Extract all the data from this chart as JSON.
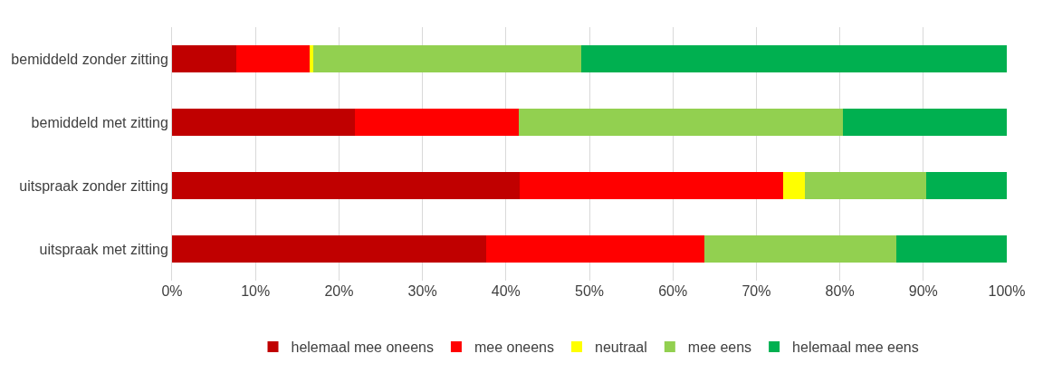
{
  "chart_data": {
    "type": "bar",
    "orientation": "horizontal",
    "stacked": true,
    "categories": [
      "bemiddeld zonder zitting",
      "bemiddeld met zitting",
      "uitspraak zonder zitting",
      "uitspraak met zitting"
    ],
    "series": [
      {
        "name": "helemaal mee oneens",
        "color": "#c00000",
        "values": [
          7.7,
          21.9,
          41.6,
          37.6
        ]
      },
      {
        "name": "mee oneens",
        "color": "#ff0000",
        "values": [
          8.8,
          19.6,
          31.6,
          26.2
        ]
      },
      {
        "name": "neutraal",
        "color": "#ffff00",
        "values": [
          0.4,
          0,
          2.6,
          0
        ]
      },
      {
        "name": "mee eens",
        "color": "#92d050",
        "values": [
          32.1,
          38.9,
          14.6,
          23.0
        ]
      },
      {
        "name": "helemaal mee eens",
        "color": "#00b050",
        "values": [
          51.0,
          19.6,
          9.6,
          13.2
        ]
      }
    ],
    "xlim": [
      0,
      100
    ],
    "xticks": [
      {
        "value": 0,
        "label": "0%"
      },
      {
        "value": 10,
        "label": "10%"
      },
      {
        "value": 20,
        "label": "20%"
      },
      {
        "value": 30,
        "label": "30%"
      },
      {
        "value": 40,
        "label": "40%"
      },
      {
        "value": 50,
        "label": "50%"
      },
      {
        "value": 60,
        "label": "60%"
      },
      {
        "value": 70,
        "label": "70%"
      },
      {
        "value": 80,
        "label": "80%"
      },
      {
        "value": 90,
        "label": "90%"
      },
      {
        "value": 100,
        "label": "100%"
      }
    ],
    "grid": "x",
    "legend": "bottom"
  }
}
